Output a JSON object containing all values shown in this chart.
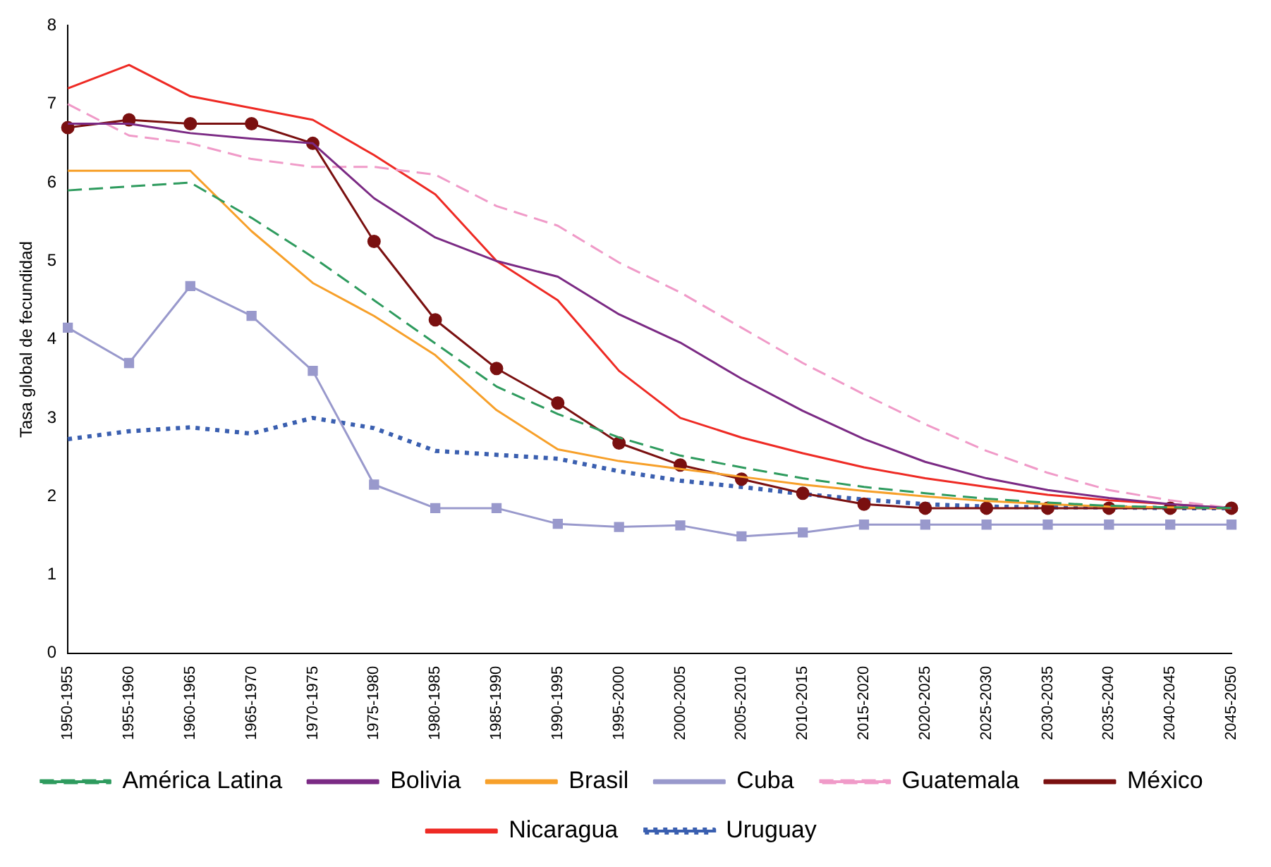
{
  "chart_data": {
    "type": "line",
    "ylabel": "Tasa global de fecundidad",
    "categories": [
      "1950-1955",
      "1955-1960",
      "1960-1965",
      "1965-1970",
      "1970-1975",
      "1975-1980",
      "1980-1985",
      "1985-1990",
      "1990-1995",
      "1995-2000",
      "2000-2005",
      "2005-2010",
      "2010-2015",
      "2015-2020",
      "2020-2025",
      "2025-2030",
      "2030-2035",
      "2035-2040",
      "2040-2045",
      "2045-2050"
    ],
    "series": [
      {
        "name": "América Latina",
        "color": "#2e9b5e",
        "line_style": "dashed",
        "marker": "none",
        "values": [
          5.9,
          5.95,
          6.0,
          5.55,
          5.05,
          4.5,
          3.95,
          3.4,
          3.05,
          2.75,
          2.52,
          2.37,
          2.23,
          2.12,
          2.04,
          1.97,
          1.92,
          1.88,
          1.86,
          1.85
        ]
      },
      {
        "name": "Bolivia",
        "color": "#7b2a84",
        "line_style": "solid",
        "marker": "none",
        "values": [
          6.75,
          6.75,
          6.63,
          6.56,
          6.5,
          5.8,
          5.3,
          5.0,
          4.8,
          4.32,
          3.96,
          3.5,
          3.09,
          2.73,
          2.44,
          2.23,
          2.08,
          1.98,
          1.9,
          1.85
        ]
      },
      {
        "name": "Brasil",
        "color": "#f7a02a",
        "line_style": "solid",
        "marker": "none",
        "values": [
          6.15,
          6.15,
          6.15,
          5.38,
          4.72,
          4.3,
          3.8,
          3.1,
          2.6,
          2.45,
          2.35,
          2.25,
          2.15,
          2.07,
          2.0,
          1.94,
          1.9,
          1.87,
          1.86,
          1.85
        ]
      },
      {
        "name": "Cuba",
        "color": "#9999cc",
        "line_style": "solid",
        "marker": "square",
        "values": [
          4.15,
          3.7,
          4.68,
          4.3,
          3.6,
          2.15,
          1.85,
          1.85,
          1.65,
          1.61,
          1.63,
          1.49,
          1.54,
          1.64,
          1.64,
          1.64,
          1.64,
          1.64,
          1.64,
          1.64
        ]
      },
      {
        "name": "Guatemala",
        "color": "#f09ac8",
        "line_style": "dashed",
        "marker": "none",
        "values": [
          7.0,
          6.6,
          6.5,
          6.3,
          6.2,
          6.2,
          6.1,
          5.7,
          5.45,
          4.98,
          4.6,
          4.15,
          3.7,
          3.3,
          2.92,
          2.58,
          2.3,
          2.08,
          1.95,
          1.85
        ]
      },
      {
        "name": "México",
        "color": "#7a1010",
        "line_style": "solid",
        "marker": "circle",
        "values": [
          6.7,
          6.8,
          6.75,
          6.75,
          6.5,
          5.25,
          4.25,
          3.63,
          3.19,
          2.68,
          2.4,
          2.22,
          2.04,
          1.9,
          1.85,
          1.85,
          1.85,
          1.85,
          1.85,
          1.85
        ]
      },
      {
        "name": "Nicaragua",
        "color": "#ee2a24",
        "line_style": "solid",
        "marker": "none",
        "values": [
          7.2,
          7.5,
          7.1,
          6.95,
          6.8,
          6.35,
          5.85,
          5.0,
          4.5,
          3.6,
          3.0,
          2.75,
          2.55,
          2.37,
          2.23,
          2.12,
          2.02,
          1.95,
          1.9,
          1.85
        ]
      },
      {
        "name": "Uruguay",
        "color": "#3a5fb0",
        "line_style": "dotted",
        "marker": "none",
        "values": [
          2.73,
          2.83,
          2.88,
          2.8,
          3.0,
          2.87,
          2.58,
          2.53,
          2.48,
          2.32,
          2.2,
          2.12,
          2.03,
          1.96,
          1.9,
          1.87,
          1.86,
          1.86,
          1.85,
          1.85
        ]
      }
    ],
    "ylim": [
      0,
      8
    ],
    "yticks": [
      0,
      1,
      2,
      3,
      4,
      5,
      6,
      7,
      8
    ],
    "grid": false,
    "legend": "bottom"
  }
}
